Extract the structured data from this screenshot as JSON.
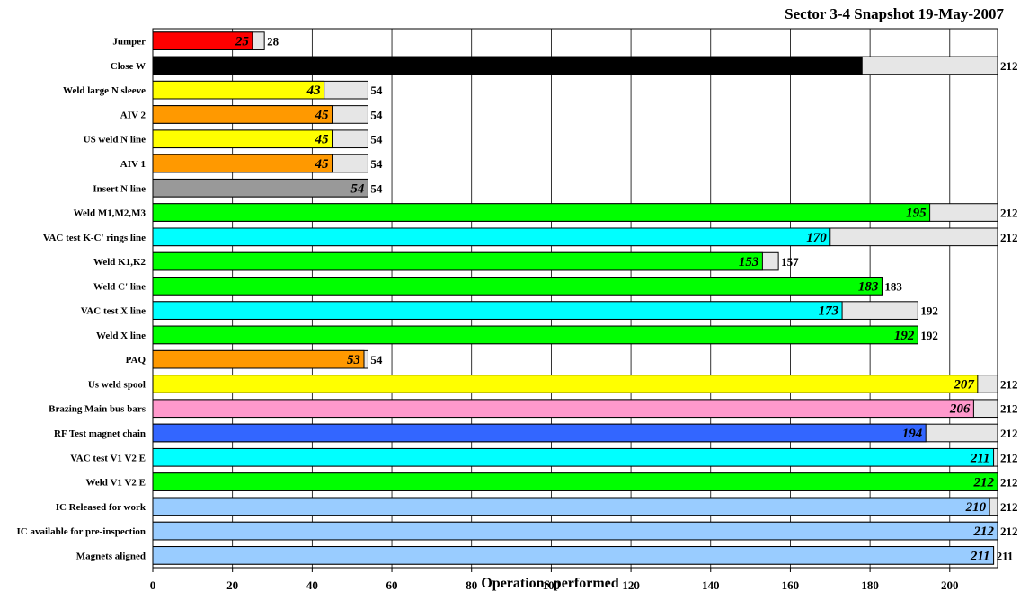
{
  "chart_data": {
    "type": "bar",
    "orientation": "horizontal",
    "title": "Sector 3-4 Snapshot 19-May-2007",
    "xlabel": "Operations performed",
    "ylabel": "",
    "xlim": [
      0,
      212
    ],
    "xticks": [
      0,
      20,
      40,
      60,
      80,
      100,
      120,
      140,
      160,
      180,
      200
    ],
    "grid": "vertical",
    "categories": [
      "Jumper",
      "Close W",
      "Weld large N sleeve",
      "AIV 2",
      "US weld N line",
      "AIV 1",
      "Insert N line",
      "Weld M1,M2,M3",
      "VAC test K-C' rings line",
      "Weld K1,K2",
      "Weld C' line",
      "VAC test X line",
      "Weld X line",
      "PAQ",
      "Us weld spool",
      "Brazing Main bus bars",
      "RF Test magnet chain",
      "VAC test V1 V2 E",
      "Weld V1 V2 E",
      "IC Released for work",
      "IC available for pre-inspection",
      "Magnets aligned"
    ],
    "series": [
      {
        "values": [
          25,
          178,
          43,
          45,
          45,
          45,
          54,
          195,
          170,
          153,
          183,
          173,
          192,
          53,
          207,
          206,
          194,
          211,
          212,
          210,
          212,
          211
        ],
        "colors": [
          "#ff0000",
          "#000000",
          "#ffff00",
          "#ff9900",
          "#ffff00",
          "#ff9900",
          "#999999",
          "#00ff00",
          "#00ffff",
          "#00ff00",
          "#00ff00",
          "#00ffff",
          "#00ff00",
          "#ff9900",
          "#ffff00",
          "#ff99cc",
          "#3366ff",
          "#00ffff",
          "#00ff00",
          "#99ccff",
          "#99ccff",
          "#99ccff"
        ]
      },
      {
        "values": [
          28,
          212,
          54,
          54,
          54,
          54,
          54,
          212,
          212,
          157,
          183,
          192,
          192,
          54,
          212,
          212,
          212,
          212,
          212,
          212,
          212,
          211
        ],
        "color": "#e6e6e6"
      }
    ]
  }
}
